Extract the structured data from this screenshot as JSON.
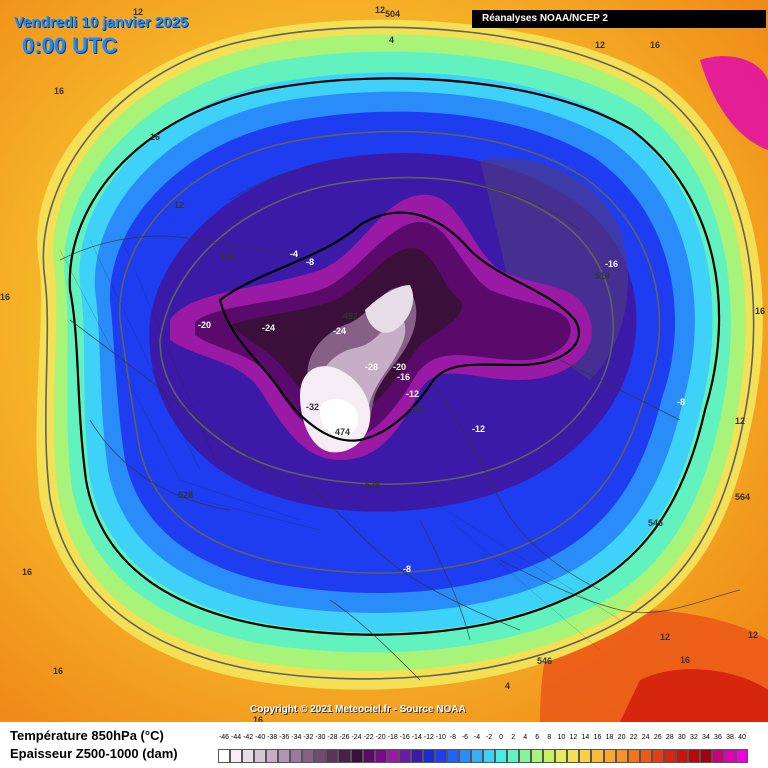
{
  "header": {
    "date": "Vendredi 10 janvier 2025",
    "time": "0:00 UTC",
    "source": "Réanalyses NOAA/NCEP 2",
    "copyright": "Copyright © 2021 Meteociel.fr - Source NOAA"
  },
  "legend": {
    "line1": "Température 850hPa (°C)",
    "line2": "Epaisseur Z500-1000 (dam)",
    "scale_labels": [
      "-46",
      "-44",
      "-42",
      "-40",
      "-38",
      "-36",
      "-34",
      "-32",
      "-30",
      "-28",
      "-26",
      "-24",
      "-22",
      "-20",
      "-18",
      "-16",
      "-14",
      "-12",
      "-10",
      "-8",
      "-6",
      "-4",
      "-2",
      "0",
      "2",
      "4",
      "6",
      "8",
      "10",
      "12",
      "14",
      "16",
      "18",
      "20",
      "22",
      "24",
      "26",
      "28",
      "30",
      "32",
      "34",
      "36",
      "38",
      "40"
    ],
    "scale_colors": [
      "#ffffff",
      "#f4eef4",
      "#e6dde6",
      "#d6c6d6",
      "#c6aec6",
      "#b394b3",
      "#9d7a9d",
      "#876087",
      "#724b72",
      "#5c335c",
      "#4a204a",
      "#3a103a",
      "#5a0a6a",
      "#7a0a8a",
      "#9a1aa6",
      "#6a1aa6",
      "#3a1aa6",
      "#1a2ad0",
      "#1e3cf0",
      "#1e64f4",
      "#2a8cf8",
      "#34b0fa",
      "#3ed2f8",
      "#48ece6",
      "#62f2c0",
      "#86f49a",
      "#a8f478",
      "#c8f064",
      "#e4ec5a",
      "#f4e054",
      "#fad044",
      "#fcbc3a",
      "#fca830",
      "#fa9026",
      "#f4741e",
      "#ec5a18",
      "#e24012",
      "#d6260e",
      "#c8140a",
      "#b80808",
      "#a00010",
      "#c8007a",
      "#e000b4",
      "#f000e0"
    ]
  },
  "map_labels": [
    {
      "text": "12",
      "role": "temp"
    },
    {
      "text": "12",
      "role": "temp"
    },
    {
      "text": "16",
      "role": "temp"
    },
    {
      "text": "16",
      "role": "temp"
    },
    {
      "text": "16",
      "role": "temp"
    },
    {
      "text": "12",
      "role": "temp"
    },
    {
      "text": "4",
      "role": "temp"
    },
    {
      "text": "-4",
      "role": "temp"
    },
    {
      "text": "-8",
      "role": "temp"
    },
    {
      "text": "-20",
      "role": "temp"
    },
    {
      "text": "-24",
      "role": "temp"
    },
    {
      "text": "-24",
      "role": "temp"
    },
    {
      "text": "-28",
      "role": "temp"
    },
    {
      "text": "-20",
      "role": "temp"
    },
    {
      "text": "-16",
      "role": "temp"
    },
    {
      "text": "-12",
      "role": "temp"
    },
    {
      "text": "-12",
      "role": "temp"
    },
    {
      "text": "-16",
      "role": "temp"
    },
    {
      "text": "-8",
      "role": "temp"
    },
    {
      "text": "-8",
      "role": "temp"
    },
    {
      "text": "12",
      "role": "temp"
    },
    {
      "text": "12",
      "role": "temp"
    },
    {
      "text": "16",
      "role": "temp"
    },
    {
      "text": "12",
      "role": "temp"
    },
    {
      "text": "16",
      "role": "temp"
    },
    {
      "text": "12",
      "role": "temp"
    },
    {
      "text": "16",
      "role": "temp"
    },
    {
      "text": "16",
      "role": "temp"
    },
    {
      "text": "16",
      "role": "temp"
    },
    {
      "text": "4",
      "role": "temp"
    },
    {
      "text": "-32",
      "role": "temp"
    },
    {
      "text": "16",
      "role": "temp"
    },
    {
      "text": "504",
      "role": "thickness"
    },
    {
      "text": "546",
      "role": "thickness"
    },
    {
      "text": "492",
      "role": "thickness"
    },
    {
      "text": "510",
      "role": "thickness"
    },
    {
      "text": "510",
      "role": "thickness"
    },
    {
      "text": "528",
      "role": "thickness"
    },
    {
      "text": "528",
      "role": "thickness"
    },
    {
      "text": "546",
      "role": "thickness"
    },
    {
      "text": "564",
      "role": "thickness"
    },
    {
      "text": "546",
      "role": "thickness"
    },
    {
      "text": "474",
      "role": "thickness"
    }
  ]
}
